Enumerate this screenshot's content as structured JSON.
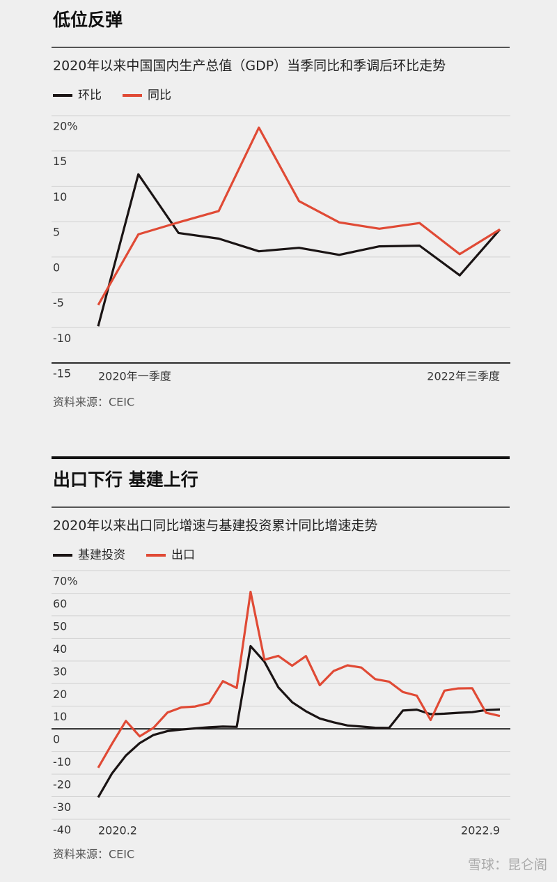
{
  "chart_data": [
    {
      "type": "line",
      "title": "低位反弹",
      "subtitle": "2020年以来中国国内生产总值（GDP）当季同比和季调后环比走势",
      "categories": [
        "2020年一季度",
        null,
        null,
        null,
        null,
        null,
        null,
        null,
        null,
        null,
        "2022年三季度"
      ],
      "series": [
        {
          "name": "环比",
          "color": "#1a1414",
          "values": [
            -9.8,
            11.7,
            3.4,
            2.6,
            0.8,
            1.3,
            0.3,
            1.5,
            1.6,
            -2.6,
            3.9
          ]
        },
        {
          "name": "同比",
          "color": "#e04a35",
          "values": [
            -6.8,
            3.2,
            4.9,
            6.5,
            18.3,
            7.9,
            4.9,
            4.0,
            4.8,
            0.4,
            3.9
          ]
        }
      ],
      "ylim": [
        -15,
        20
      ],
      "yticks": [
        {
          "value": 20,
          "label": "20%"
        },
        15,
        10,
        5,
        0,
        -5,
        -10,
        -15
      ],
      "grid": true,
      "baseline": -15,
      "legend": "top-left",
      "source": "资料来源：CEIC"
    },
    {
      "type": "line",
      "title": "出口下行 基建上行",
      "subtitle": "2020年以来出口同比增速与基建投资累计同比增速走势",
      "categories": [
        "2020.2",
        null,
        null,
        null,
        null,
        null,
        null,
        null,
        null,
        null,
        null,
        null,
        null,
        null,
        null,
        null,
        null,
        null,
        null,
        null,
        null,
        null,
        null,
        null,
        null,
        null,
        null,
        null,
        null,
        "2022.9"
      ],
      "series": [
        {
          "name": "基建投资",
          "color": "#1a1414",
          "values": [
            -30.3,
            -19.7,
            -11.8,
            -6.3,
            -2.7,
            -1.0,
            -0.3,
            0.2,
            0.7,
            1.0,
            0.9,
            36.6,
            29.7,
            18.4,
            11.8,
            7.8,
            4.6,
            2.9,
            1.5,
            1.0,
            0.5,
            0.4,
            8.1,
            8.5,
            6.5,
            6.7,
            7.1,
            7.4,
            8.3,
            8.6
          ]
        },
        {
          "name": "出口",
          "color": "#e04a35",
          "values": [
            -17.2,
            -6.6,
            3.5,
            -3.3,
            0.5,
            7.2,
            9.5,
            9.9,
            11.4,
            21.1,
            18.1,
            60.6,
            30.6,
            32.3,
            27.9,
            32.2,
            19.3,
            25.6,
            28.1,
            27.1,
            22.0,
            20.9,
            16.3,
            14.7,
            3.9,
            16.9,
            17.9,
            18.0,
            7.1,
            5.7
          ]
        }
      ],
      "ylim": [
        -40,
        70
      ],
      "yticks": [
        {
          "value": 70,
          "label": "70%"
        },
        60,
        50,
        40,
        30,
        20,
        10,
        0,
        -10,
        -20,
        -30,
        -40
      ],
      "grid": true,
      "baseline": 0,
      "legend": "top-left",
      "source": "资料来源：CEIC"
    }
  ],
  "watermark": "雪球：昆仑阁"
}
